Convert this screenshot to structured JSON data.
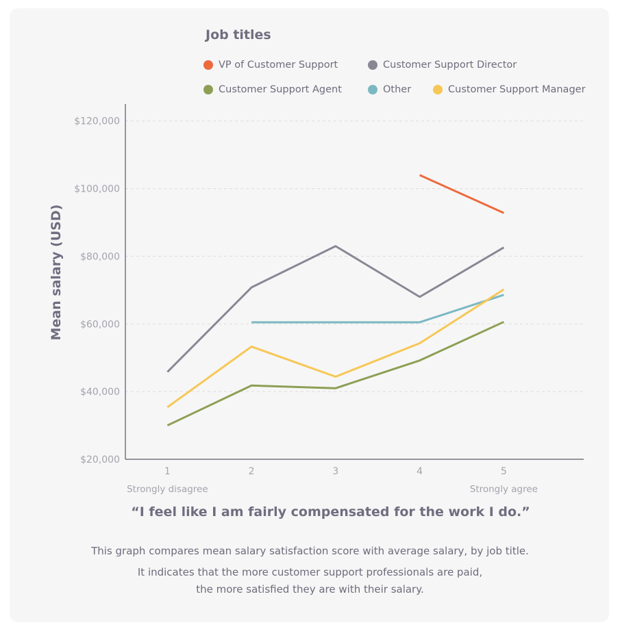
{
  "colors": {
    "vp": "#ed6a3d",
    "director": "#8a8794",
    "agent": "#8d9f55",
    "other": "#7bb8c2",
    "manager": "#f7c755"
  },
  "legend": {
    "title": "Job titles",
    "items": [
      {
        "label": "VP of Customer Support",
        "color": "#ed6a3d"
      },
      {
        "label": "Customer Support Director",
        "color": "#8a8794"
      },
      {
        "label": "Customer Support Agent",
        "color": "#8d9f55"
      },
      {
        "label": "Other",
        "color": "#7bb8c2"
      },
      {
        "label": "Customer Support Manager",
        "color": "#f7c755"
      }
    ]
  },
  "chart_data": {
    "type": "line",
    "title": "",
    "xlabel": "“I feel like I am fairly compensated for the work I do.”",
    "ylabel": "Mean salary (USD)",
    "x": [
      1,
      2,
      3,
      4,
      5
    ],
    "x_ticks": [
      "1",
      "2",
      "3",
      "4",
      "5"
    ],
    "x_tick_sublabels": {
      "1": "Strongly disagree",
      "5": "Strongly agree"
    },
    "y_ticks": [
      "$20,000",
      "$40,000",
      "$60,000",
      "$80,000",
      "$100,000",
      "$120,000"
    ],
    "y_tick_values": [
      20000,
      40000,
      60000,
      80000,
      100000,
      120000
    ],
    "ylim": [
      20000,
      125000
    ],
    "xlim": [
      0.5,
      5.95
    ],
    "grid": true,
    "legend_position": "top",
    "series": [
      {
        "name": "VP of Customer Support",
        "color": "#ed6a3d",
        "values": [
          null,
          null,
          null,
          104000,
          92800
        ]
      },
      {
        "name": "Customer Support Director",
        "color": "#8a8794",
        "values": [
          45800,
          70800,
          83000,
          68000,
          82600
        ]
      },
      {
        "name": "Other",
        "color": "#7bb8c2",
        "values": [
          null,
          60500,
          60500,
          60500,
          68600
        ]
      },
      {
        "name": "Customer Support Manager",
        "color": "#f7c755",
        "values": [
          35400,
          53300,
          44400,
          54300,
          70200
        ]
      },
      {
        "name": "Customer Support Agent",
        "color": "#8d9f55",
        "values": [
          30000,
          41800,
          41000,
          49200,
          60600
        ]
      }
    ]
  },
  "caption": {
    "line1": "This graph compares mean salary satisfaction score with average salary, by job title.",
    "line2": "It indicates that the more customer support professionals are paid,",
    "line3": "the more satisfied they are with their salary."
  }
}
